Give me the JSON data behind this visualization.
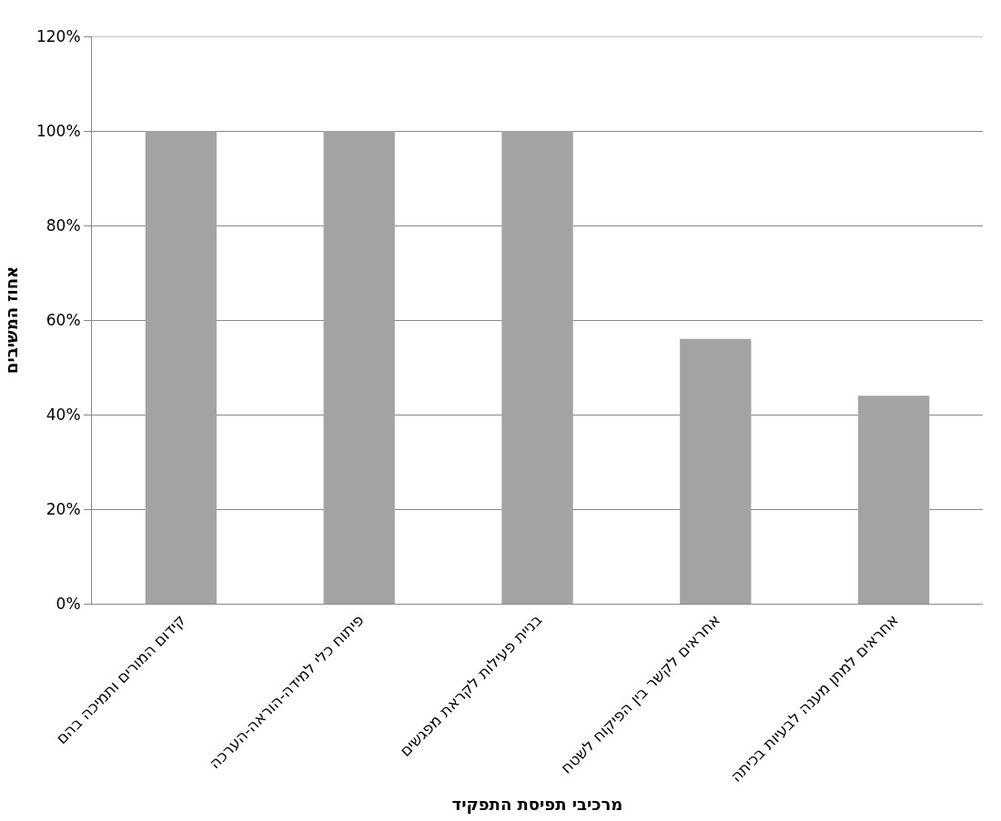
{
  "chart_data": {
    "type": "bar",
    "xlabel": "מרכיבי תפיסת התפקיד",
    "ylabel": "אחוז המשיבים",
    "categories": [
      "קידום המורים ותמיכה בהם",
      "פיתוח כלי למידה-הוראה-הערכה",
      "בניית פעילות לקראת מפגשים",
      "אחראים לקשר בין הפיקוח לשטח",
      "אחראים למתן מענה לבעיות בכיתה"
    ],
    "values": [
      100,
      100,
      100,
      56,
      44
    ],
    "color": "#a3a3a3",
    "ylim": [
      0,
      120
    ],
    "yticks": [
      {
        "value": 0,
        "label": "0%"
      },
      {
        "value": 20,
        "label": "20%"
      },
      {
        "value": 40,
        "label": "40%"
      },
      {
        "value": 60,
        "label": "60%"
      },
      {
        "value": 80,
        "label": "80%"
      },
      {
        "value": 100,
        "label": "100%"
      },
      {
        "value": 120,
        "label": "120%"
      }
    ],
    "grid": "y"
  }
}
